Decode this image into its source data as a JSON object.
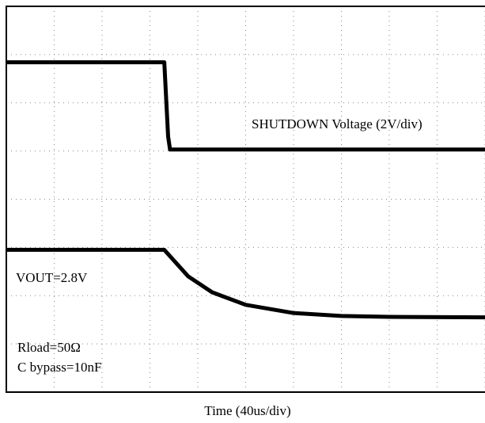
{
  "chart_data": {
    "type": "line",
    "xlabel": "Time (40us/div)",
    "annotations": [
      "SHUTDOWN Voltage (2V/div)",
      "VOUT=2.8V",
      "Rload=50Ω",
      "C bypass=10nF"
    ],
    "xlim": [
      0,
      10
    ],
    "ylim": [
      0,
      8
    ],
    "xticks": [
      0,
      1,
      2,
      3,
      4,
      5,
      6,
      7,
      8,
      9,
      10
    ],
    "yticks": [
      0,
      1,
      2,
      3,
      4,
      5,
      6,
      7,
      8
    ],
    "grid": true,
    "series": [
      {
        "color": "#000000",
        "x": [
          0,
          3.3,
          3.38,
          3.42,
          10
        ],
        "values": [
          6.84,
          6.84,
          5.3,
          5.03,
          5.03
        ]
      },
      {
        "color": "#000000",
        "x": [
          0,
          3.3,
          3.8,
          4.3,
          5,
          6,
          7,
          8,
          10
        ],
        "values": [
          2.95,
          2.95,
          2.4,
          2.07,
          1.81,
          1.64,
          1.58,
          1.56,
          1.55
        ]
      }
    ]
  }
}
